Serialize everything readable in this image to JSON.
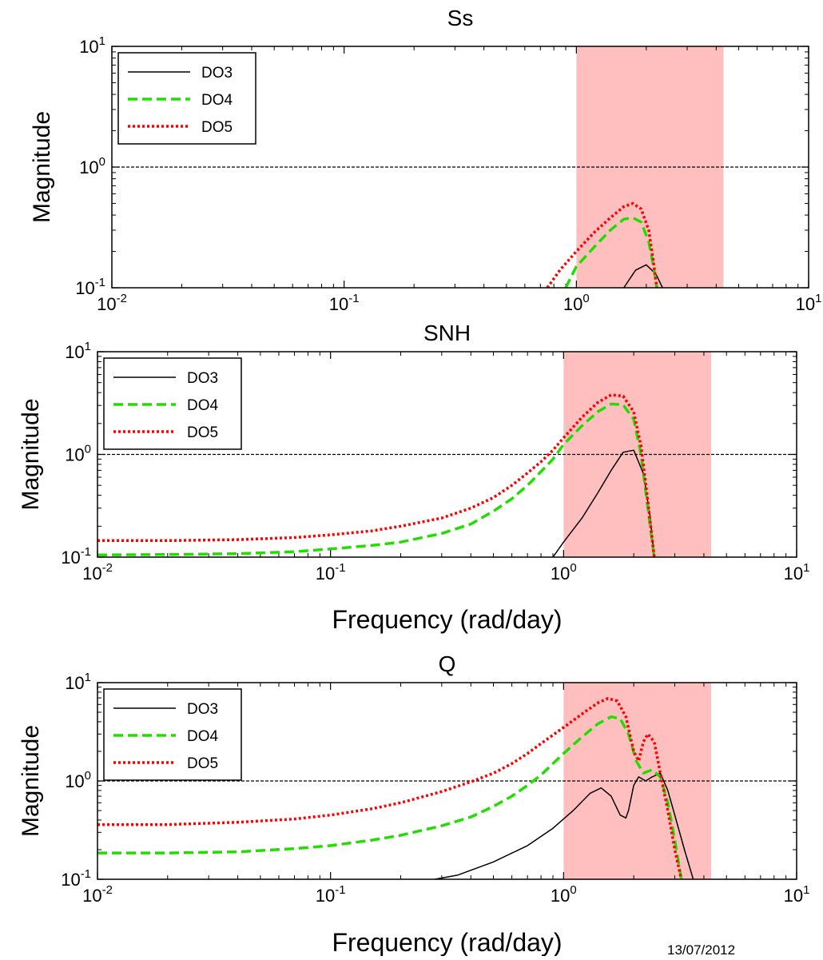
{
  "footer_date": "13/07/2012",
  "chart_data": [
    {
      "type": "line",
      "title": "Ss",
      "xlabel": "",
      "ylabel": "Magnitude",
      "x_scale": "log",
      "y_scale": "log",
      "xlim": [
        0.01,
        10
      ],
      "ylim": [
        0.1,
        10
      ],
      "x_ticks": [
        0.01,
        0.1,
        1,
        10
      ],
      "y_ticks": [
        0.1,
        1,
        10
      ],
      "reference_line": 1,
      "shaded_band": {
        "x": [
          1.0,
          4.3
        ],
        "color": "#FFBFBF"
      },
      "legend": {
        "position": "top-left",
        "entries": [
          "DO3",
          "DO4",
          "DO5"
        ]
      },
      "series": [
        {
          "name": "DO3",
          "color": "#000000",
          "style": "solid",
          "x": [
            1.6,
            1.8,
            2.0,
            2.2,
            2.35
          ],
          "y": [
            0.1,
            0.14,
            0.155,
            0.13,
            0.1
          ]
        },
        {
          "name": "DO4",
          "color": "#22DD00",
          "style": "dashed",
          "x": [
            0.9,
            1.0,
            1.2,
            1.4,
            1.6,
            1.75,
            1.9,
            2.05,
            2.15,
            2.22
          ],
          "y": [
            0.1,
            0.15,
            0.22,
            0.3,
            0.37,
            0.38,
            0.35,
            0.24,
            0.15,
            0.1
          ]
        },
        {
          "name": "DO5",
          "color": "#FF0000",
          "style": "dotted",
          "x": [
            0.75,
            0.85,
            1.0,
            1.2,
            1.4,
            1.6,
            1.75,
            1.9,
            2.05,
            2.15,
            2.22
          ],
          "y": [
            0.1,
            0.14,
            0.2,
            0.29,
            0.38,
            0.47,
            0.5,
            0.45,
            0.3,
            0.16,
            0.1
          ]
        }
      ]
    },
    {
      "type": "line",
      "title": "SNH",
      "xlabel": "Frequency (rad/day)",
      "ylabel": "Magnitude",
      "x_scale": "log",
      "y_scale": "log",
      "xlim": [
        0.01,
        10
      ],
      "ylim": [
        0.1,
        10
      ],
      "x_ticks": [
        0.01,
        0.1,
        1,
        10
      ],
      "y_ticks": [
        0.1,
        1,
        10
      ],
      "reference_line": 1,
      "shaded_band": {
        "x": [
          1.0,
          4.3
        ],
        "color": "#FFBFBF"
      },
      "legend": {
        "position": "top-left",
        "entries": [
          "DO3",
          "DO4",
          "DO5"
        ]
      },
      "series": [
        {
          "name": "DO3",
          "color": "#000000",
          "style": "solid",
          "x": [
            0.9,
            1.0,
            1.2,
            1.4,
            1.6,
            1.8,
            2.0,
            2.2,
            2.35,
            2.45
          ],
          "y": [
            0.1,
            0.14,
            0.24,
            0.42,
            0.7,
            1.05,
            1.1,
            0.65,
            0.25,
            0.1
          ]
        },
        {
          "name": "DO4",
          "color": "#22DD00",
          "style": "dashed",
          "x": [
            0.01,
            0.02,
            0.04,
            0.07,
            0.1,
            0.15,
            0.2,
            0.3,
            0.4,
            0.5,
            0.6,
            0.7,
            0.8,
            0.9,
            1.0,
            1.2,
            1.4,
            1.6,
            1.8,
            2.0,
            2.15,
            2.3,
            2.45
          ],
          "y": [
            0.105,
            0.106,
            0.108,
            0.113,
            0.12,
            0.13,
            0.14,
            0.17,
            0.21,
            0.28,
            0.37,
            0.5,
            0.68,
            0.9,
            1.25,
            1.9,
            2.6,
            3.1,
            3.05,
            2.2,
            1.0,
            0.3,
            0.1
          ]
        },
        {
          "name": "DO5",
          "color": "#FF0000",
          "style": "dotted",
          "x": [
            0.01,
            0.02,
            0.04,
            0.07,
            0.1,
            0.15,
            0.2,
            0.3,
            0.4,
            0.5,
            0.6,
            0.7,
            0.8,
            0.9,
            1.0,
            1.2,
            1.4,
            1.6,
            1.8,
            2.0,
            2.15,
            2.3,
            2.45
          ],
          "y": [
            0.145,
            0.145,
            0.148,
            0.155,
            0.165,
            0.18,
            0.2,
            0.24,
            0.3,
            0.38,
            0.5,
            0.66,
            0.85,
            1.1,
            1.45,
            2.3,
            3.2,
            3.8,
            3.7,
            2.6,
            1.2,
            0.35,
            0.1
          ]
        }
      ]
    },
    {
      "type": "line",
      "title": "Q",
      "xlabel": "Frequency (rad/day)",
      "ylabel": "Magnitude",
      "x_scale": "log",
      "y_scale": "log",
      "xlim": [
        0.01,
        10
      ],
      "ylim": [
        0.1,
        10
      ],
      "x_ticks": [
        0.01,
        0.1,
        1,
        10
      ],
      "y_ticks": [
        0.1,
        1,
        10
      ],
      "reference_line": 1,
      "shaded_band": {
        "x": [
          1.0,
          4.3
        ],
        "color": "#FFBFBF"
      },
      "legend": {
        "position": "top-left",
        "entries": [
          "DO3",
          "DO4",
          "DO5"
        ]
      },
      "series": [
        {
          "name": "DO3",
          "color": "#000000",
          "style": "solid",
          "x": [
            0.28,
            0.35,
            0.5,
            0.7,
            0.9,
            1.1,
            1.3,
            1.45,
            1.6,
            1.75,
            1.85,
            1.9,
            2.0,
            2.1,
            2.25,
            2.4,
            2.6,
            2.8,
            3.0,
            3.3,
            3.6
          ],
          "y": [
            0.1,
            0.11,
            0.15,
            0.22,
            0.33,
            0.5,
            0.75,
            0.85,
            0.7,
            0.45,
            0.42,
            0.5,
            0.9,
            1.1,
            1.0,
            1.1,
            1.2,
            0.8,
            0.45,
            0.2,
            0.1
          ]
        },
        {
          "name": "DO4",
          "color": "#22DD00",
          "style": "dashed",
          "x": [
            0.01,
            0.02,
            0.04,
            0.07,
            0.1,
            0.15,
            0.2,
            0.3,
            0.4,
            0.5,
            0.6,
            0.7,
            0.8,
            1.0,
            1.2,
            1.4,
            1.6,
            1.75,
            1.9,
            2.05,
            2.2,
            2.4,
            2.6,
            2.8,
            3.0,
            3.2
          ],
          "y": [
            0.185,
            0.185,
            0.19,
            0.205,
            0.22,
            0.25,
            0.28,
            0.35,
            0.43,
            0.55,
            0.7,
            0.9,
            1.15,
            1.9,
            2.8,
            3.8,
            4.5,
            4.3,
            3.0,
            1.6,
            1.2,
            1.3,
            1.1,
            0.6,
            0.25,
            0.1
          ]
        },
        {
          "name": "DO5",
          "color": "#FF0000",
          "style": "dotted",
          "x": [
            0.01,
            0.02,
            0.04,
            0.07,
            0.1,
            0.15,
            0.2,
            0.3,
            0.4,
            0.5,
            0.6,
            0.7,
            0.8,
            1.0,
            1.2,
            1.4,
            1.55,
            1.7,
            1.85,
            2.0,
            2.1,
            2.2,
            2.3,
            2.45,
            2.6,
            2.8,
            3.0,
            3.2
          ],
          "y": [
            0.36,
            0.36,
            0.38,
            0.41,
            0.45,
            0.52,
            0.6,
            0.78,
            0.98,
            1.2,
            1.5,
            1.9,
            2.4,
            3.5,
            4.8,
            6.2,
            6.9,
            6.5,
            4.5,
            2.0,
            1.6,
            2.5,
            3.0,
            2.5,
            1.2,
            0.5,
            0.2,
            0.1
          ]
        }
      ]
    }
  ]
}
